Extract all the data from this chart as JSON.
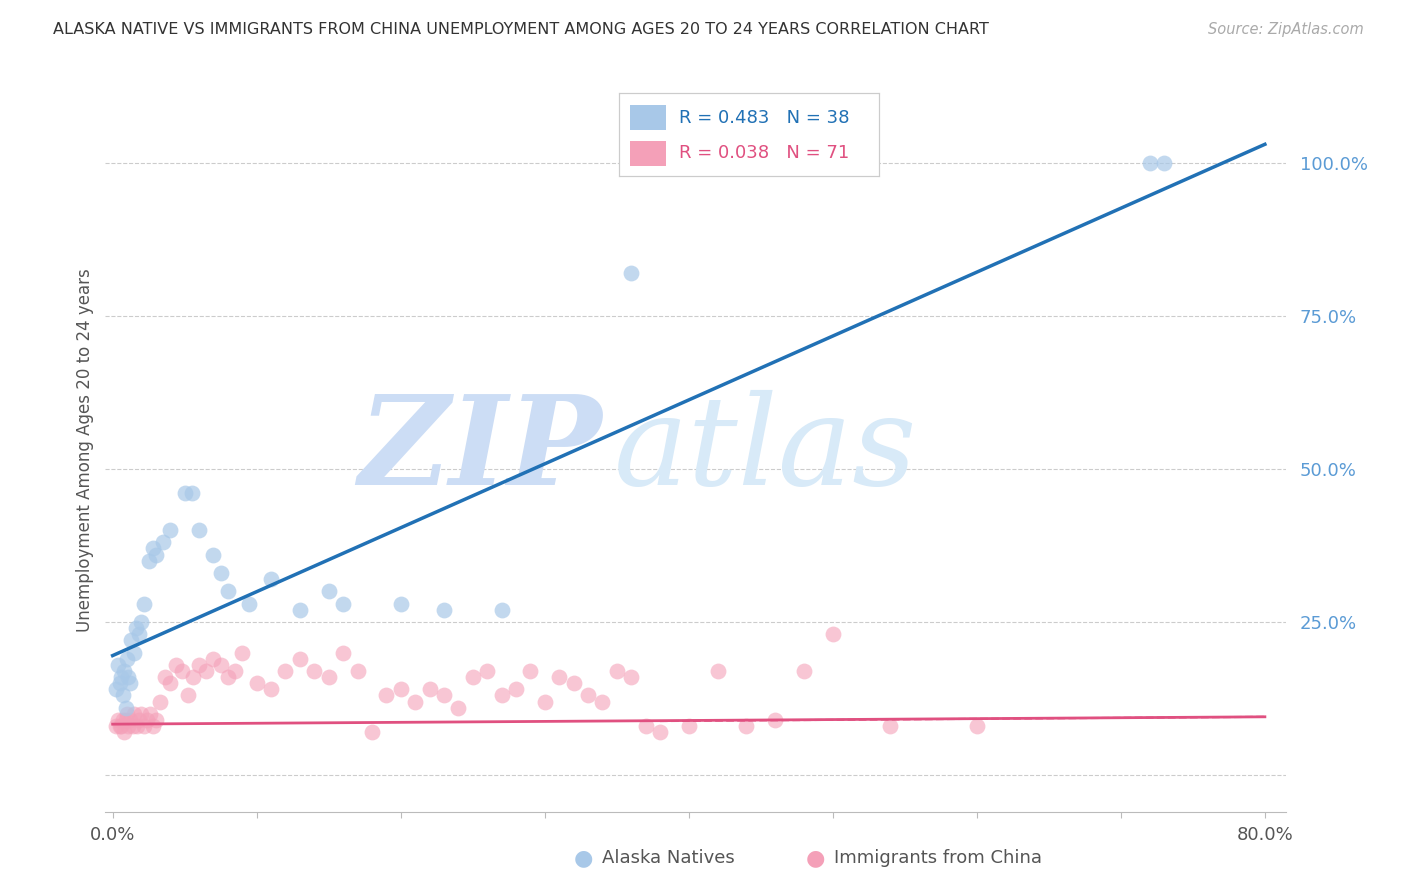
{
  "title": "ALASKA NATIVE VS IMMIGRANTS FROM CHINA UNEMPLOYMENT AMONG AGES 20 TO 24 YEARS CORRELATION CHART",
  "source": "Source: ZipAtlas.com",
  "ylabel": "Unemployment Among Ages 20 to 24 years",
  "xlim_min": -0.005,
  "xlim_max": 0.815,
  "ylim_min": -0.06,
  "ylim_max": 1.12,
  "legend_blue_r": "R = 0.483",
  "legend_blue_n": "N = 38",
  "legend_pink_r": "R = 0.038",
  "legend_pink_n": "N = 71",
  "blue_scatter_color": "#a8c8e8",
  "blue_line_color": "#2171b5",
  "pink_scatter_color": "#f4a0b8",
  "pink_line_color": "#e05080",
  "grid_color": "#cccccc",
  "watermark_zip_color": "#ccddf0",
  "watermark_atlas_color": "#c8ddf5",
  "background_color": "#ffffff",
  "blue_line_x0": 0.0,
  "blue_line_y0": 0.195,
  "blue_line_x1": 0.8,
  "blue_line_y1": 1.03,
  "pink_line_x0": 0.0,
  "pink_line_y0": 0.083,
  "pink_line_x1": 0.8,
  "pink_line_y1": 0.095,
  "alaska_x": [
    0.002,
    0.004,
    0.005,
    0.006,
    0.007,
    0.008,
    0.009,
    0.01,
    0.011,
    0.012,
    0.013,
    0.015,
    0.016,
    0.018,
    0.02,
    0.022,
    0.025,
    0.028,
    0.03,
    0.035,
    0.04,
    0.05,
    0.055,
    0.06,
    0.07,
    0.075,
    0.08,
    0.095,
    0.11,
    0.13,
    0.15,
    0.16,
    0.2,
    0.23,
    0.27,
    0.36,
    0.72,
    0.73
  ],
  "alaska_y": [
    0.14,
    0.18,
    0.15,
    0.16,
    0.13,
    0.17,
    0.11,
    0.19,
    0.16,
    0.15,
    0.22,
    0.2,
    0.24,
    0.23,
    0.25,
    0.28,
    0.35,
    0.37,
    0.36,
    0.38,
    0.4,
    0.46,
    0.46,
    0.4,
    0.36,
    0.33,
    0.3,
    0.28,
    0.32,
    0.27,
    0.3,
    0.28,
    0.28,
    0.27,
    0.27,
    0.82,
    1.0,
    1.0
  ],
  "china_x": [
    0.002,
    0.004,
    0.005,
    0.006,
    0.007,
    0.008,
    0.009,
    0.01,
    0.011,
    0.012,
    0.014,
    0.015,
    0.017,
    0.018,
    0.02,
    0.022,
    0.024,
    0.026,
    0.028,
    0.03,
    0.033,
    0.036,
    0.04,
    0.044,
    0.048,
    0.052,
    0.056,
    0.06,
    0.065,
    0.07,
    0.075,
    0.08,
    0.085,
    0.09,
    0.1,
    0.11,
    0.12,
    0.13,
    0.14,
    0.15,
    0.16,
    0.17,
    0.18,
    0.19,
    0.2,
    0.21,
    0.22,
    0.23,
    0.24,
    0.25,
    0.26,
    0.27,
    0.28,
    0.29,
    0.3,
    0.31,
    0.32,
    0.33,
    0.34,
    0.35,
    0.36,
    0.37,
    0.38,
    0.4,
    0.42,
    0.44,
    0.46,
    0.48,
    0.5,
    0.54,
    0.6
  ],
  "china_y": [
    0.08,
    0.09,
    0.08,
    0.08,
    0.09,
    0.07,
    0.09,
    0.1,
    0.08,
    0.09,
    0.08,
    0.1,
    0.08,
    0.09,
    0.1,
    0.08,
    0.09,
    0.1,
    0.08,
    0.09,
    0.12,
    0.16,
    0.15,
    0.18,
    0.17,
    0.13,
    0.16,
    0.18,
    0.17,
    0.19,
    0.18,
    0.16,
    0.17,
    0.2,
    0.15,
    0.14,
    0.17,
    0.19,
    0.17,
    0.16,
    0.2,
    0.17,
    0.07,
    0.13,
    0.14,
    0.12,
    0.14,
    0.13,
    0.11,
    0.16,
    0.17,
    0.13,
    0.14,
    0.17,
    0.12,
    0.16,
    0.15,
    0.13,
    0.12,
    0.17,
    0.16,
    0.08,
    0.07,
    0.08,
    0.17,
    0.08,
    0.09,
    0.17,
    0.23,
    0.08,
    0.08
  ]
}
